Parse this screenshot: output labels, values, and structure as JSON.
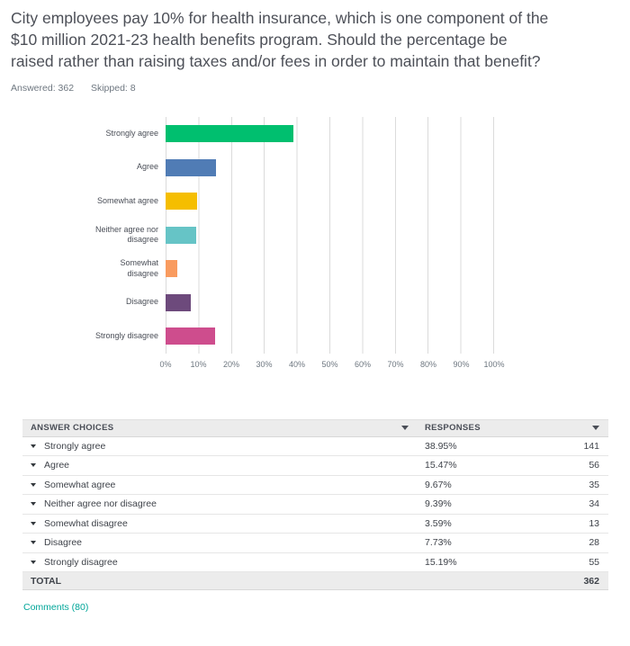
{
  "theme": {
    "link_color": "#00a699",
    "table_header_bg": "#ececec"
  },
  "header": {
    "title_lines": [
      "City employees pay 10% for health insurance, which is one component of the",
      "$10 million 2021-23  health benefits program. Should the percentage be",
      "raised rather than raising taxes and/or fees in order to maintain that benefit?"
    ],
    "answered_label": "Answered: 362",
    "skipped_label": "Skipped: 8"
  },
  "chart_data": {
    "type": "bar",
    "orientation": "horizontal",
    "title": "",
    "categories": [
      "Strongly agree",
      "Agree",
      "Somewhat agree",
      "Neither agree nor disagree",
      "Somewhat disagree",
      "Disagree",
      "Strongly disagree"
    ],
    "values": [
      38.95,
      15.47,
      9.67,
      9.39,
      3.59,
      7.73,
      15.19
    ],
    "colors": [
      "#00bf6f",
      "#507cb5",
      "#f5be00",
      "#66c4c6",
      "#f99b5f",
      "#6d4a7c",
      "#ce4d8d"
    ],
    "xlim": [
      0,
      100
    ],
    "tick_labels": [
      "0%",
      "10%",
      "20%",
      "30%",
      "40%",
      "50%",
      "60%",
      "70%",
      "80%",
      "90%",
      "100%"
    ],
    "grid": true,
    "legend": "none"
  },
  "table": {
    "headers": {
      "choices": "ANSWER CHOICES",
      "responses": "RESPONSES"
    },
    "rows": [
      {
        "choice": "Strongly agree",
        "percent": "38.95%",
        "count": "141"
      },
      {
        "choice": "Agree",
        "percent": "15.47%",
        "count": "56"
      },
      {
        "choice": "Somewhat agree",
        "percent": "9.67%",
        "count": "35"
      },
      {
        "choice": "Neither agree nor disagree",
        "percent": "9.39%",
        "count": "34"
      },
      {
        "choice": "Somewhat disagree",
        "percent": "3.59%",
        "count": "13"
      },
      {
        "choice": "Disagree",
        "percent": "7.73%",
        "count": "28"
      },
      {
        "choice": "Strongly disagree",
        "percent": "15.19%",
        "count": "55"
      }
    ],
    "total_label": "TOTAL",
    "total_value": "362"
  },
  "footer": {
    "comments_link": "Comments (80)"
  }
}
